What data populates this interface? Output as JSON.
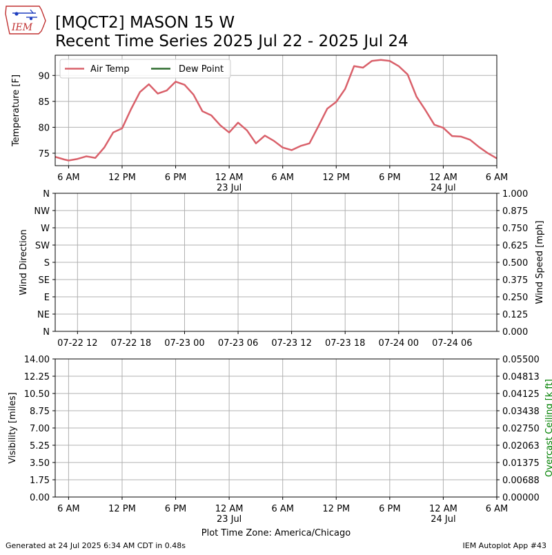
{
  "header": {
    "logo_text": "IEM",
    "title_line1": "[MQCT2] MASON 15 W",
    "title_line2": "Recent Time Series 2025 Jul 22 - 2025 Jul 24"
  },
  "footer": {
    "generated": "Generated at 24 Jul 2025 6:34 AM CDT in 0.48s",
    "app": "IEM Autoplot App #43",
    "timezone": "Plot Time Zone: America/Chicago"
  },
  "colors": {
    "air_temp": "#d9606a",
    "dew_point": "#2e6b2e",
    "grid": "#b0b0b0",
    "ceiling_label": "#008000"
  },
  "chart_data": [
    {
      "type": "line",
      "name": "temperature-panel",
      "ylabel": "Temperature [F]",
      "ylim": [
        72.6,
        93.9
      ],
      "yticks": [
        75,
        80,
        85,
        90
      ],
      "x_range": [
        "2025-07-22 04:30",
        "2025-07-24 06:00"
      ],
      "grid": true,
      "legend": "top-left",
      "x_ticks": [
        {
          "t": "2025-07-22 06:00",
          "label": "6 AM",
          "sub": ""
        },
        {
          "t": "2025-07-22 12:00",
          "label": "12 PM",
          "sub": ""
        },
        {
          "t": "2025-07-22 18:00",
          "label": "6 PM",
          "sub": ""
        },
        {
          "t": "2025-07-23 00:00",
          "label": "12 AM",
          "sub": "23 Jul"
        },
        {
          "t": "2025-07-23 06:00",
          "label": "6 AM",
          "sub": ""
        },
        {
          "t": "2025-07-23 12:00",
          "label": "12 PM",
          "sub": ""
        },
        {
          "t": "2025-07-23 18:00",
          "label": "6 PM",
          "sub": ""
        },
        {
          "t": "2025-07-24 00:00",
          "label": "12 AM",
          "sub": "24 Jul"
        },
        {
          "t": "2025-07-24 06:00",
          "label": "6 AM",
          "sub": ""
        }
      ],
      "series": [
        {
          "name": "Air Temp",
          "color": "#d9606a",
          "points": [
            [
              "2025-07-22 04:30",
              74.3
            ],
            [
              "2025-07-22 05:30",
              73.8
            ],
            [
              "2025-07-22 06:00",
              73.6
            ],
            [
              "2025-07-22 07:00",
              73.9
            ],
            [
              "2025-07-22 08:00",
              74.4
            ],
            [
              "2025-07-22 09:00",
              74.1
            ],
            [
              "2025-07-22 10:00",
              76.1
            ],
            [
              "2025-07-22 11:00",
              79.0
            ],
            [
              "2025-07-22 12:00",
              79.8
            ],
            [
              "2025-07-22 13:00",
              83.5
            ],
            [
              "2025-07-22 14:00",
              86.8
            ],
            [
              "2025-07-22 15:00",
              88.3
            ],
            [
              "2025-07-22 16:00",
              86.5
            ],
            [
              "2025-07-22 17:00",
              87.1
            ],
            [
              "2025-07-22 18:00",
              88.8
            ],
            [
              "2025-07-22 19:00",
              88.2
            ],
            [
              "2025-07-22 20:00",
              86.3
            ],
            [
              "2025-07-22 21:00",
              83.1
            ],
            [
              "2025-07-22 22:00",
              82.3
            ],
            [
              "2025-07-22 23:00",
              80.4
            ],
            [
              "2025-07-23 00:00",
              79.0
            ],
            [
              "2025-07-23 01:00",
              80.9
            ],
            [
              "2025-07-23 02:00",
              79.4
            ],
            [
              "2025-07-23 03:00",
              76.9
            ],
            [
              "2025-07-23 04:00",
              78.4
            ],
            [
              "2025-07-23 05:00",
              77.4
            ],
            [
              "2025-07-23 06:00",
              76.1
            ],
            [
              "2025-07-23 07:00",
              75.6
            ],
            [
              "2025-07-23 08:00",
              76.4
            ],
            [
              "2025-07-23 09:00",
              76.9
            ],
            [
              "2025-07-23 10:00",
              80.2
            ],
            [
              "2025-07-23 11:00",
              83.6
            ],
            [
              "2025-07-23 12:00",
              84.9
            ],
            [
              "2025-07-23 13:00",
              87.4
            ],
            [
              "2025-07-23 14:00",
              91.8
            ],
            [
              "2025-07-23 15:00",
              91.5
            ],
            [
              "2025-07-23 16:00",
              92.8
            ],
            [
              "2025-07-23 17:00",
              93.0
            ],
            [
              "2025-07-23 18:00",
              92.8
            ],
            [
              "2025-07-23 19:00",
              91.8
            ],
            [
              "2025-07-23 20:00",
              90.2
            ],
            [
              "2025-07-23 21:00",
              85.9
            ],
            [
              "2025-07-23 22:00",
              83.3
            ],
            [
              "2025-07-23 23:00",
              80.5
            ],
            [
              "2025-07-24 00:00",
              79.9
            ],
            [
              "2025-07-24 01:00",
              78.3
            ],
            [
              "2025-07-24 02:00",
              78.2
            ],
            [
              "2025-07-24 03:00",
              77.6
            ],
            [
              "2025-07-24 04:00",
              76.2
            ],
            [
              "2025-07-24 05:00",
              75.0
            ],
            [
              "2025-07-24 06:00",
              74.0
            ]
          ]
        },
        {
          "name": "Dew Point",
          "color": "#2e6b2e",
          "points": []
        }
      ]
    },
    {
      "type": "line",
      "name": "wind-panel",
      "ylabel": "Wind Direction",
      "y2label": "Wind Speed [mph]",
      "y_categories": [
        "N",
        "NE",
        "E",
        "SE",
        "S",
        "SW",
        "W",
        "NW",
        "N"
      ],
      "y2ticks": [
        "0.000",
        "0.125",
        "0.250",
        "0.375",
        "0.500",
        "0.625",
        "0.750",
        "0.875",
        "1.000"
      ],
      "x_range": [
        "2025-07-22 09:30",
        "2025-07-24 11:00"
      ],
      "grid": true,
      "x_ticks": [
        {
          "t": "2025-07-22 12:00",
          "label": "07-22 12"
        },
        {
          "t": "2025-07-22 18:00",
          "label": "07-22 18"
        },
        {
          "t": "2025-07-23 00:00",
          "label": "07-23 00"
        },
        {
          "t": "2025-07-23 06:00",
          "label": "07-23 06"
        },
        {
          "t": "2025-07-23 12:00",
          "label": "07-23 12"
        },
        {
          "t": "2025-07-23 18:00",
          "label": "07-23 18"
        },
        {
          "t": "2025-07-24 00:00",
          "label": "07-24 00"
        },
        {
          "t": "2025-07-24 06:00",
          "label": "07-24 06"
        }
      ],
      "series": []
    },
    {
      "type": "line",
      "name": "visibility-panel",
      "ylabel": "Visibility [miles]",
      "y2label": "Overcast Ceiling [k ft]",
      "yticks": [
        "0.00",
        "1.75",
        "3.50",
        "5.25",
        "7.00",
        "8.75",
        "10.50",
        "12.25",
        "14.00"
      ],
      "y2ticks": [
        "0.00000",
        "0.00688",
        "0.01375",
        "0.02063",
        "0.02750",
        "0.03438",
        "0.04125",
        "0.04813",
        "0.05500"
      ],
      "ylim": [
        0,
        14
      ],
      "x_range": [
        "2025-07-22 04:30",
        "2025-07-24 06:00"
      ],
      "grid": true,
      "x_ticks": [
        {
          "t": "2025-07-22 06:00",
          "label": "6 AM",
          "sub": ""
        },
        {
          "t": "2025-07-22 12:00",
          "label": "12 PM",
          "sub": ""
        },
        {
          "t": "2025-07-22 18:00",
          "label": "6 PM",
          "sub": ""
        },
        {
          "t": "2025-07-23 00:00",
          "label": "12 AM",
          "sub": "23 Jul"
        },
        {
          "t": "2025-07-23 06:00",
          "label": "6 AM",
          "sub": ""
        },
        {
          "t": "2025-07-23 12:00",
          "label": "12 PM",
          "sub": ""
        },
        {
          "t": "2025-07-23 18:00",
          "label": "6 PM",
          "sub": ""
        },
        {
          "t": "2025-07-24 00:00",
          "label": "12 AM",
          "sub": "24 Jul"
        },
        {
          "t": "2025-07-24 06:00",
          "label": "6 AM",
          "sub": ""
        }
      ],
      "series": []
    }
  ]
}
